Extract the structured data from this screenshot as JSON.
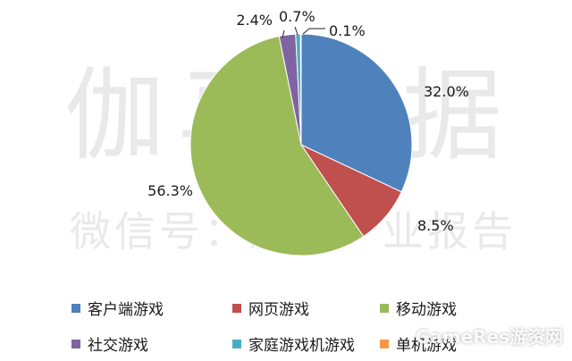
{
  "watermark": {
    "main": "伽马数据",
    "sub": "微信号：游戏产业报告",
    "corner": "GameRes游资网"
  },
  "chart_data": {
    "type": "pie",
    "title": "",
    "labels": [
      "客户端游戏",
      "网页游戏",
      "移动游戏",
      "社交游戏",
      "家庭游戏机游戏",
      "单机游戏"
    ],
    "values": [
      32.0,
      8.5,
      56.3,
      2.4,
      0.7,
      0.1
    ],
    "value_labels": [
      "32.0%",
      "8.5%",
      "56.3%",
      "2.4%",
      "0.7%",
      "0.1%"
    ],
    "colors": [
      "#4F81BD",
      "#C0504D",
      "#9BBB59",
      "#8064A2",
      "#4BACC6",
      "#F79646"
    ],
    "start": "12 o'clock, clockwise",
    "legend_position": "bottom"
  }
}
